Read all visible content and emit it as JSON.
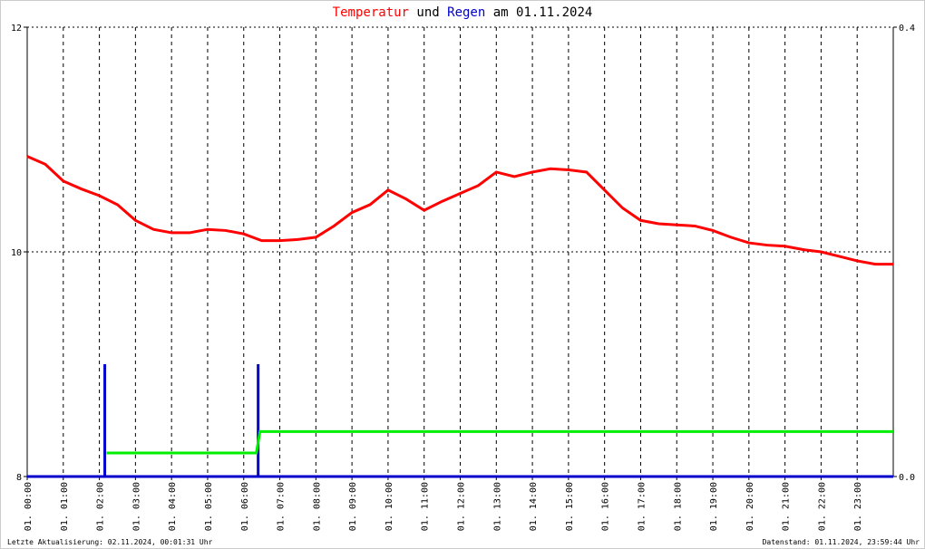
{
  "chart_data": {
    "type": "line",
    "title_connector": "und",
    "title_date": "am 01.11.2024",
    "footer_left": "Letzte Aktualisierung: 02.11.2024, 00:01:31 Uhr",
    "footer_right": "Datenstand: 01.11.2024, 23:59:44 Uhr",
    "xlim": [
      0,
      24
    ],
    "xticks": [
      {
        "value": 0,
        "label": "01. 00:00"
      },
      {
        "value": 1,
        "label": "01. 01:00"
      },
      {
        "value": 2,
        "label": "01. 02:00"
      },
      {
        "value": 3,
        "label": "01. 03:00"
      },
      {
        "value": 4,
        "label": "01. 04:00"
      },
      {
        "value": 5,
        "label": "01. 05:00"
      },
      {
        "value": 6,
        "label": "01. 06:00"
      },
      {
        "value": 7,
        "label": "01. 07:00"
      },
      {
        "value": 8,
        "label": "01. 08:00"
      },
      {
        "value": 9,
        "label": "01. 09:00"
      },
      {
        "value": 10,
        "label": "01. 10:00"
      },
      {
        "value": 11,
        "label": "01. 11:00"
      },
      {
        "value": 12,
        "label": "01. 12:00"
      },
      {
        "value": 13,
        "label": "01. 13:00"
      },
      {
        "value": 14,
        "label": "01. 14:00"
      },
      {
        "value": 15,
        "label": "01. 15:00"
      },
      {
        "value": 16,
        "label": "01. 16:00"
      },
      {
        "value": 17,
        "label": "01. 17:00"
      },
      {
        "value": 18,
        "label": "01. 18:00"
      },
      {
        "value": 19,
        "label": "01. 19:00"
      },
      {
        "value": 20,
        "label": "01. 20:00"
      },
      {
        "value": 21,
        "label": "01. 21:00"
      },
      {
        "value": 22,
        "label": "01. 22:00"
      },
      {
        "value": 23,
        "label": "01. 23:00"
      }
    ],
    "ylim": [
      8,
      12
    ],
    "yticks": [
      8,
      10,
      12
    ],
    "y2lim": [
      0,
      0.4
    ],
    "y2ticks": [
      {
        "value": 0,
        "label": "0.0"
      },
      0.4
    ],
    "grid": true,
    "series": [
      {
        "name": "Temperatur",
        "color": "#ff0000",
        "mark": "line",
        "x": [
          0,
          0.5,
          1,
          1.5,
          2,
          2.5,
          3,
          3.5,
          4,
          4.5,
          5,
          5.5,
          6,
          6.5,
          7,
          7.5,
          8,
          8.5,
          9,
          9.5,
          10,
          10.5,
          11,
          11.5,
          12,
          12.5,
          13,
          13.5,
          14,
          14.5,
          15,
          15.5,
          16,
          16.5,
          17,
          17.5,
          18,
          18.5,
          19,
          19.5,
          20,
          20.5,
          21,
          21.5,
          22,
          22.5,
          23,
          23.5,
          24
        ],
        "values": [
          10.85,
          10.78,
          10.63,
          10.56,
          10.5,
          10.42,
          10.28,
          10.2,
          10.17,
          10.17,
          10.2,
          10.19,
          10.16,
          10.1,
          10.1,
          10.11,
          10.13,
          10.23,
          10.35,
          10.42,
          10.55,
          10.47,
          10.37,
          10.45,
          10.52,
          10.59,
          10.71,
          10.67,
          10.71,
          10.74,
          10.73,
          10.71,
          10.55,
          10.39,
          10.28,
          10.25,
          10.24,
          10.23,
          10.19,
          10.13,
          10.08,
          10.06,
          10.05,
          10.02,
          10.0,
          9.96,
          9.92,
          9.89,
          9.89
        ]
      },
      {
        "name": "Regen",
        "color": "#0000cc",
        "mark": "bar",
        "axis": "y2",
        "x": [
          2.15,
          6.4
        ],
        "values": [
          0.1,
          0.1
        ]
      },
      {
        "color": "#00ee00",
        "mark": "line",
        "axis": "y2",
        "x": [
          2.2,
          6.35,
          6.45,
          24
        ],
        "values": [
          0.021,
          0.021,
          0.04,
          0.04
        ]
      }
    ]
  }
}
